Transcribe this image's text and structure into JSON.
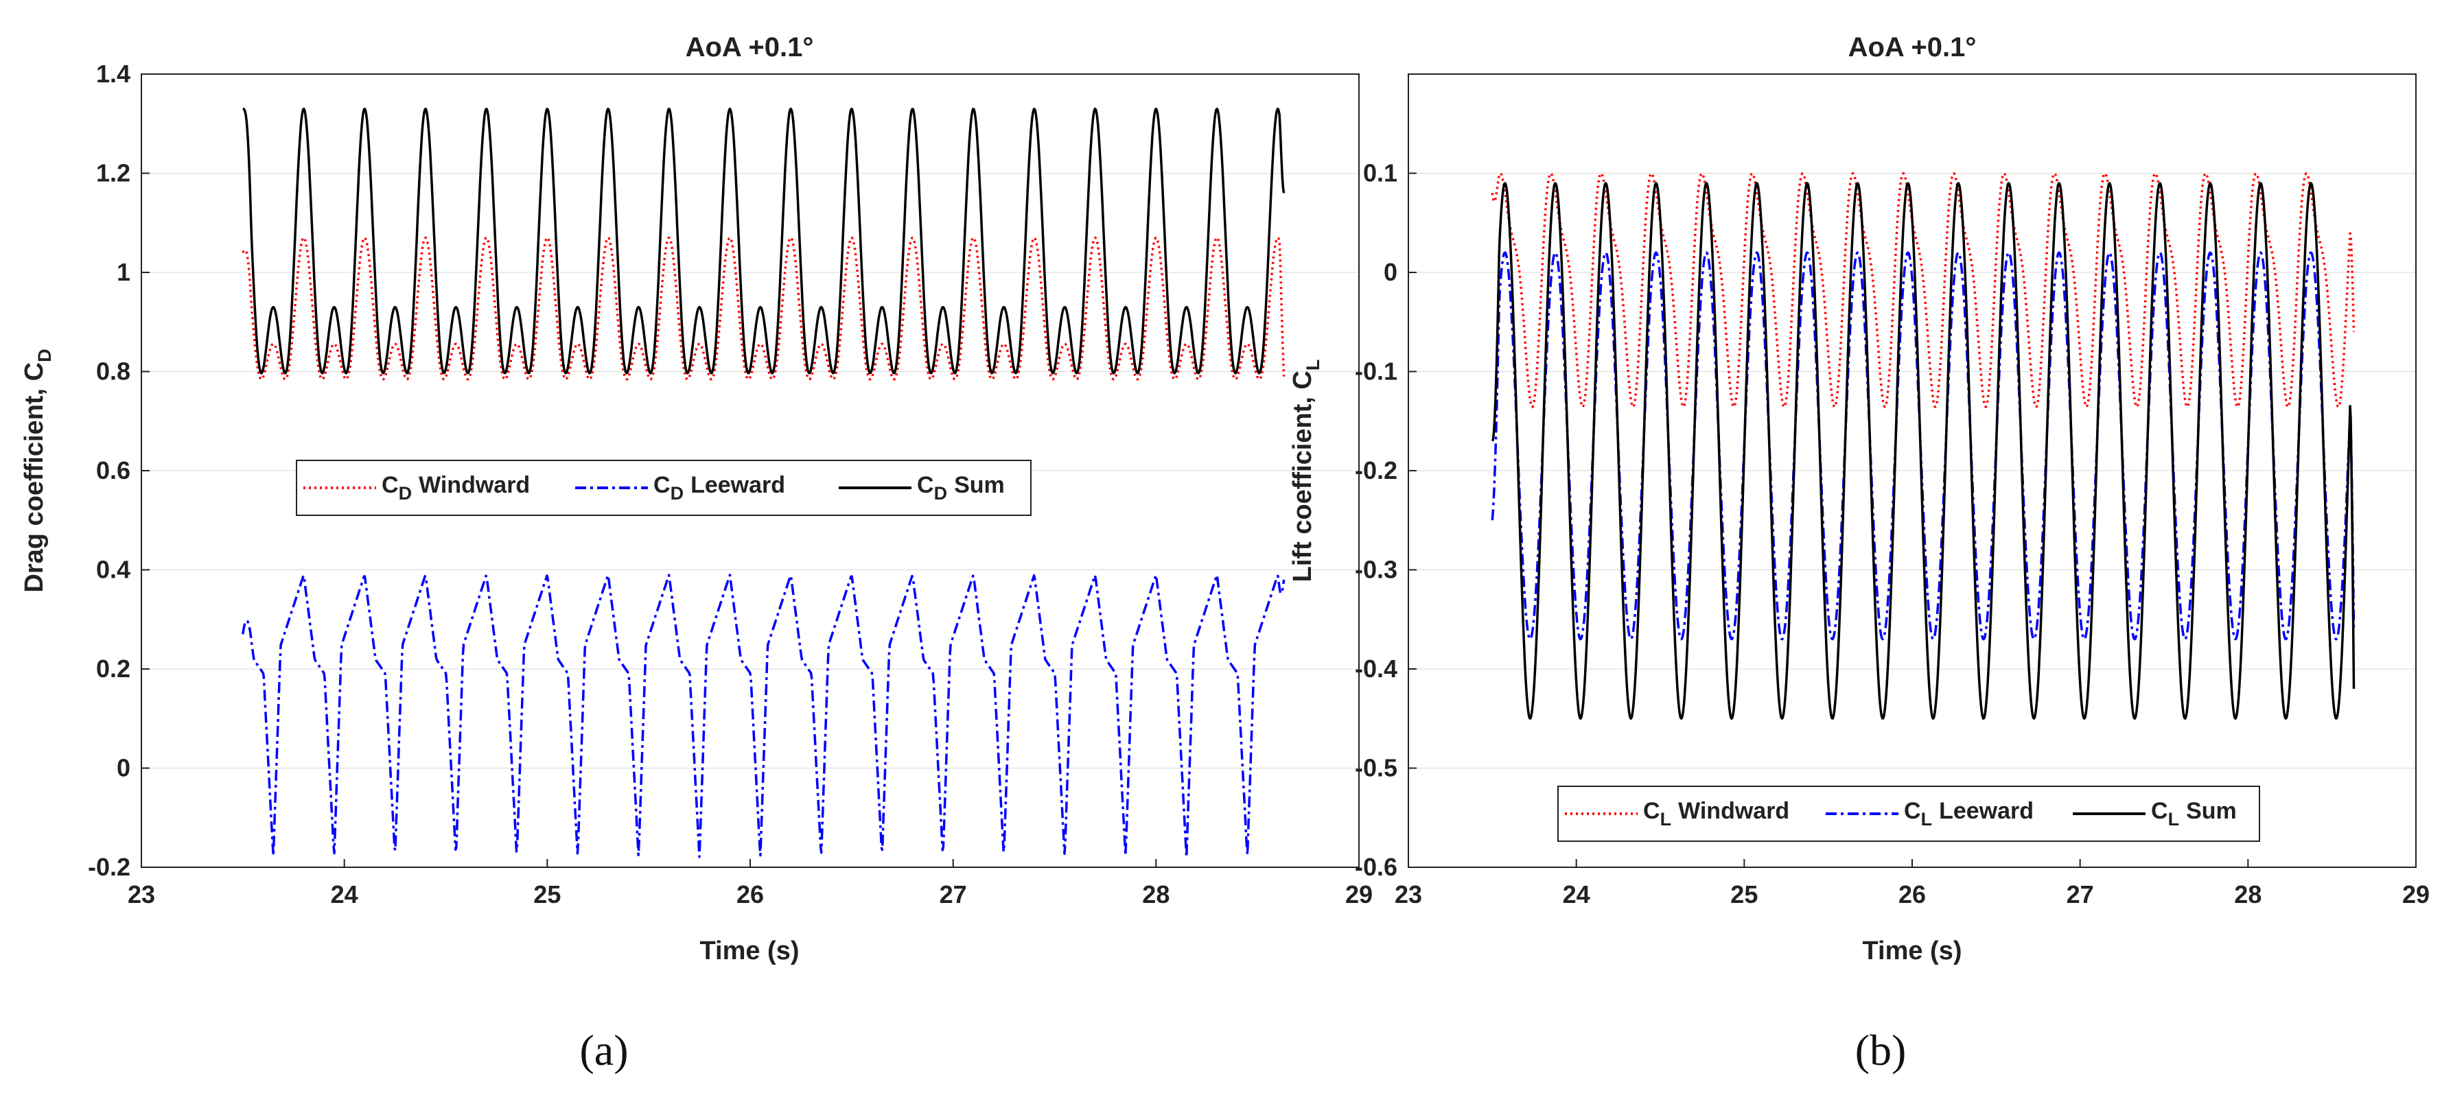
{
  "colors": {
    "windward": "#ff0000",
    "leeward": "#0000ff",
    "sum": "#000000"
  },
  "panel_labels": [
    "(a)",
    "(b)"
  ],
  "chart_data": [
    {
      "type": "line",
      "title": "AoA +0.1°",
      "xlabel": "Time (s)",
      "ylabel": {
        "main": "Drag coefficient, C",
        "sub": "D"
      },
      "xlim": [
        23,
        29
      ],
      "ylim": [
        -0.2,
        1.4
      ],
      "xticks": [
        23,
        24,
        25,
        26,
        27,
        28,
        29
      ],
      "xtick_labels": [
        "23",
        "24",
        "25",
        "26",
        "27",
        "28",
        "29"
      ],
      "yticks": [
        -0.2,
        0,
        0.2,
        0.4,
        0.6,
        0.8,
        1,
        1.2,
        1.4
      ],
      "ytick_labels": [
        "-0.2",
        "0",
        "0.2",
        "0.4",
        "0.6",
        "0.8",
        "1",
        "1.2",
        "1.4"
      ],
      "legend_position": "middle-right",
      "signal": {
        "t_start": 23.5,
        "t_end": 28.63,
        "period": 0.3
      },
      "series": [
        {
          "key": "windward",
          "name": "Windward",
          "symbol": "C",
          "sub": "D",
          "style": "dotted",
          "min": 0.77,
          "max": 1.07,
          "mean": 0.92,
          "shape": "double-peak",
          "start_value": 1.04,
          "end_value": 0.79
        },
        {
          "key": "leeward",
          "name": "Leeward",
          "symbol": "C",
          "sub": "D",
          "style": "dashdot",
          "min": -0.18,
          "max": 0.39,
          "shoulder": 0.27,
          "shape": "pulse",
          "start_value": 0.27,
          "end_value": 0.38
        },
        {
          "key": "sum",
          "name": "Sum",
          "symbol": "C",
          "sub": "D",
          "style": "solid",
          "min": 0.77,
          "max": 1.33,
          "mean": 1.05,
          "shape": "double-peak",
          "start_value": 1.33,
          "end_value": 1.16
        }
      ]
    },
    {
      "type": "line",
      "title": "AoA +0.1°",
      "xlabel": "Time (s)",
      "ylabel": {
        "main": "Lift coefficient, C",
        "sub": "L"
      },
      "xlim": [
        23,
        29
      ],
      "ylim": [
        -0.6,
        0.2
      ],
      "xticks": [
        23,
        24,
        25,
        26,
        27,
        28,
        29
      ],
      "xtick_labels": [
        "23",
        "24",
        "25",
        "26",
        "27",
        "28",
        "29"
      ],
      "yticks": [
        -0.6,
        -0.5,
        -0.4,
        -0.3,
        -0.2,
        -0.1,
        0,
        0.1
      ],
      "ytick_labels": [
        "-0.6",
        "-0.5",
        "-0.4",
        "-0.3",
        "-0.2",
        "-0.1",
        "0",
        "0.1"
      ],
      "legend_position": "bottom-center",
      "signal": {
        "t_start": 23.5,
        "t_end": 28.63,
        "period": 0.3
      },
      "series": [
        {
          "key": "windward",
          "name": "Windward",
          "symbol": "C",
          "sub": "L",
          "style": "dotted",
          "min": -0.13,
          "max": 0.12,
          "shape": "skewed",
          "start_value": 0.08,
          "end_value": -0.06
        },
        {
          "key": "leeward",
          "name": "Leeward",
          "symbol": "C",
          "sub": "L",
          "style": "dashdot",
          "min": -0.37,
          "max": 0.02,
          "shape": "sine",
          "start_value": -0.25,
          "end_value": -0.36
        },
        {
          "key": "sum",
          "name": "Sum",
          "symbol": "C",
          "sub": "L",
          "style": "solid",
          "min": -0.45,
          "max": 0.09,
          "shape": "sine",
          "start_value": -0.17,
          "end_value": -0.42
        }
      ]
    }
  ]
}
